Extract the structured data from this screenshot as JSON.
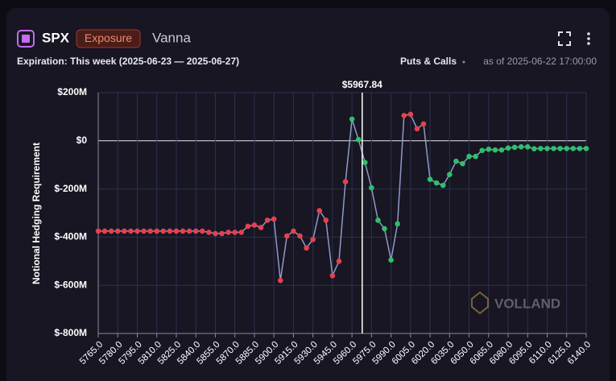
{
  "header": {
    "symbol": "SPX",
    "tag": "Exposure",
    "metric": "Vanna",
    "expiration": "Expiration: This week (2025-06-23 — 2025-06-27)",
    "mode": "Puts & Calls",
    "as_of": "as of 2025-06-22 17:00:00"
  },
  "chart_data": {
    "type": "line",
    "y_label": "Notional Hedging Requirement",
    "watermark": "VOLLAND",
    "spot": {
      "value": 5967.84,
      "label": "$5967.84"
    },
    "x": [
      5765,
      5770,
      5775,
      5780,
      5785,
      5790,
      5795,
      5800,
      5805,
      5810,
      5815,
      5820,
      5825,
      5830,
      5835,
      5840,
      5845,
      5850,
      5855,
      5860,
      5865,
      5870,
      5875,
      5880,
      5885,
      5890,
      5895,
      5900,
      5905,
      5910,
      5915,
      5920,
      5925,
      5930,
      5935,
      5940,
      5945,
      5950,
      5955,
      5960,
      5965,
      5970,
      5975,
      5980,
      5985,
      5990,
      5995,
      6000,
      6005,
      6010,
      6015,
      6020,
      6025,
      6030,
      6035,
      6040,
      6045,
      6050,
      6055,
      6060,
      6065,
      6070,
      6075,
      6080,
      6085,
      6090,
      6095,
      6100,
      6105,
      6110,
      6115,
      6120,
      6125,
      6130,
      6135,
      6140
    ],
    "series": [
      {
        "color": "#8e9ac8",
        "values": [
          -375,
          -375,
          -375,
          -375,
          -375,
          -375,
          -375,
          -375,
          -375,
          -375,
          -375,
          -375,
          -375,
          -375,
          -375,
          -375,
          -375,
          -380,
          -385,
          -385,
          -380,
          -380,
          -380,
          -355,
          -350,
          -360,
          -330,
          -325,
          -580,
          -395,
          -375,
          -395,
          -445,
          -410,
          -290,
          -330,
          -560,
          -500,
          -170,
          90,
          5,
          -90,
          -195,
          -330,
          -365,
          -495,
          -345,
          105,
          110,
          50,
          70,
          -160,
          -175,
          -185,
          -140,
          -85,
          -95,
          -65,
          -65,
          -40,
          -35,
          -38,
          -38,
          -30,
          -27,
          -25,
          -25,
          -33,
          -32,
          -32,
          -32,
          -32,
          -32,
          -32,
          -32,
          -32
        ],
        "point_colors": [
          "#e5414f",
          "#e5414f",
          "#e5414f",
          "#e5414f",
          "#e5414f",
          "#e5414f",
          "#e5414f",
          "#e5414f",
          "#e5414f",
          "#e5414f",
          "#e5414f",
          "#e5414f",
          "#e5414f",
          "#e5414f",
          "#e5414f",
          "#e5414f",
          "#e5414f",
          "#e5414f",
          "#e5414f",
          "#e5414f",
          "#e5414f",
          "#e5414f",
          "#e5414f",
          "#e5414f",
          "#e5414f",
          "#e5414f",
          "#e5414f",
          "#e5414f",
          "#e5414f",
          "#e5414f",
          "#e5414f",
          "#e5414f",
          "#e5414f",
          "#e5414f",
          "#e5414f",
          "#e5414f",
          "#e5414f",
          "#e5414f",
          "#e5414f",
          "#2fbf6a",
          "#2fbf6a",
          "#2fbf6a",
          "#2fbf6a",
          "#2fbf6a",
          "#2fbf6a",
          "#2fbf6a",
          "#2fbf6a",
          "#e5414f",
          "#e5414f",
          "#e5414f",
          "#e5414f",
          "#2fbf6a",
          "#2fbf6a",
          "#2fbf6a",
          "#2fbf6a",
          "#2fbf6a",
          "#2fbf6a",
          "#2fbf6a",
          "#2fbf6a",
          "#2fbf6a",
          "#2fbf6a",
          "#2fbf6a",
          "#2fbf6a",
          "#2fbf6a",
          "#2fbf6a",
          "#2fbf6a",
          "#2fbf6a",
          "#2fbf6a",
          "#2fbf6a",
          "#2fbf6a",
          "#2fbf6a",
          "#2fbf6a",
          "#2fbf6a",
          "#2fbf6a",
          "#2fbf6a",
          "#2fbf6a"
        ]
      }
    ],
    "xlim": [
      5765,
      6140
    ],
    "ylim": [
      -800,
      200
    ],
    "xticks": [
      {
        "value": 5765,
        "label": "5765.0"
      },
      {
        "value": 5780,
        "label": "5780.0"
      },
      {
        "value": 5795,
        "label": "5795.0"
      },
      {
        "value": 5810,
        "label": "5810.0"
      },
      {
        "value": 5825,
        "label": "5825.0"
      },
      {
        "value": 5840,
        "label": "5840.0"
      },
      {
        "value": 5855,
        "label": "5855.0"
      },
      {
        "value": 5870,
        "label": "5870.0"
      },
      {
        "value": 5885,
        "label": "5885.0"
      },
      {
        "value": 5900,
        "label": "5900.0"
      },
      {
        "value": 5915,
        "label": "5915.0"
      },
      {
        "value": 5930,
        "label": "5930.0"
      },
      {
        "value": 5945,
        "label": "5945.0"
      },
      {
        "value": 5960,
        "label": "5960.0"
      },
      {
        "value": 5975,
        "label": "5975.0"
      },
      {
        "value": 5990,
        "label": "5990.0"
      },
      {
        "value": 6005,
        "label": "6005.0"
      },
      {
        "value": 6020,
        "label": "6020.0"
      },
      {
        "value": 6035,
        "label": "6035.0"
      },
      {
        "value": 6050,
        "label": "6050.0"
      },
      {
        "value": 6065,
        "label": "6065.0"
      },
      {
        "value": 6080,
        "label": "6080.0"
      },
      {
        "value": 6095,
        "label": "6095.0"
      },
      {
        "value": 6110,
        "label": "6110.0"
      },
      {
        "value": 6125,
        "label": "6125.0"
      },
      {
        "value": 6140,
        "label": "6140.0"
      }
    ],
    "yticks": [
      {
        "value": 200,
        "label": "$200M"
      },
      {
        "value": 0,
        "label": "$0"
      },
      {
        "value": -200,
        "label": "$-200M"
      },
      {
        "value": -400,
        "label": "$-400M"
      },
      {
        "value": -600,
        "label": "$-600M"
      },
      {
        "value": -800,
        "label": "$-800M"
      }
    ],
    "grid": true
  }
}
